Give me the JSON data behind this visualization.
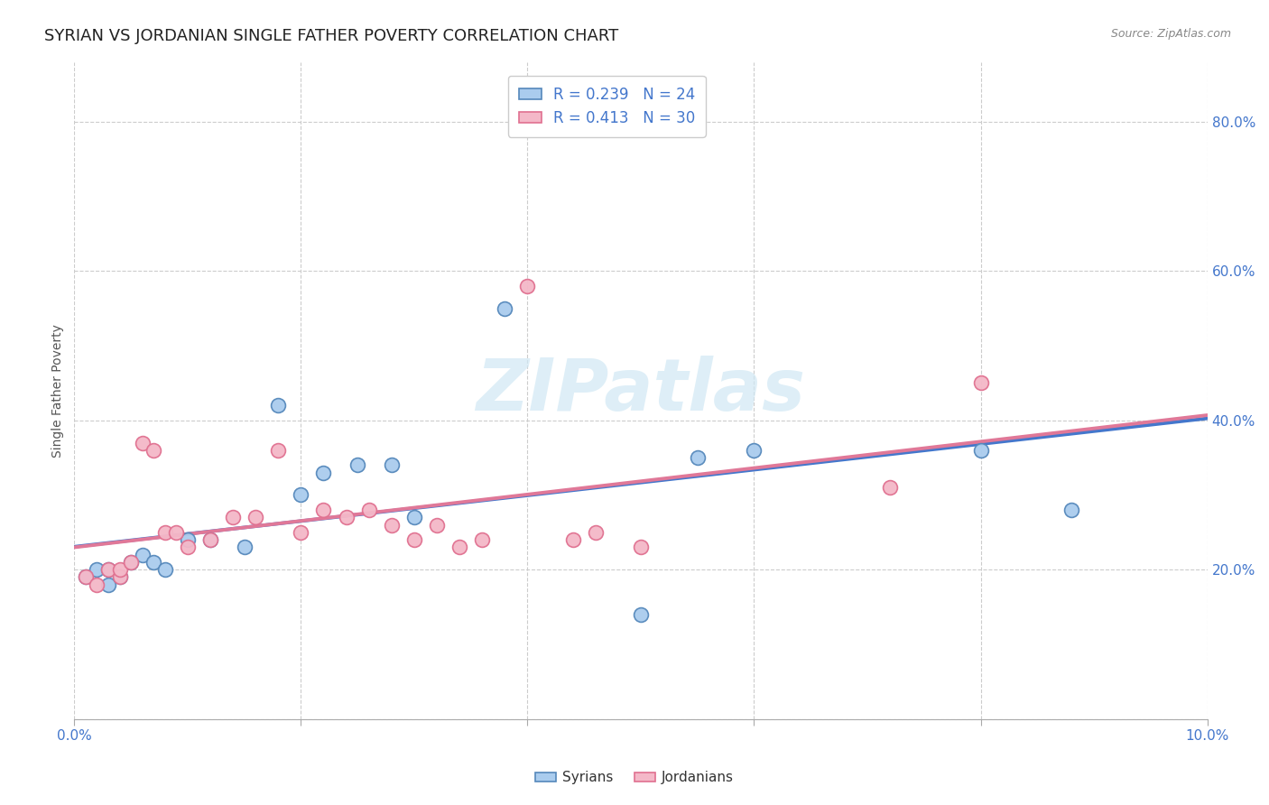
{
  "title": "SYRIAN VS JORDANIAN SINGLE FATHER POVERTY CORRELATION CHART",
  "source": "Source: ZipAtlas.com",
  "ylabel": "Single Father Poverty",
  "xlim": [
    0.0,
    0.1
  ],
  "ylim": [
    0.0,
    0.88
  ],
  "xtick_positions": [
    0.0,
    0.02,
    0.04,
    0.06,
    0.08,
    0.1
  ],
  "xticklabels": [
    "0.0%",
    "",
    "",
    "",
    "",
    "10.0%"
  ],
  "ytick_positions": [
    0.0,
    0.2,
    0.4,
    0.6,
    0.8
  ],
  "yticklabels": [
    "",
    "20.0%",
    "40.0%",
    "60.0%",
    "80.0%"
  ],
  "syrian_color": "#aaccee",
  "syrian_edge": "#5588bb",
  "jordanian_color": "#f4b8c8",
  "jordanian_edge": "#e07090",
  "trend_syrian_color": "#4477cc",
  "trend_jordanian_color": "#e07898",
  "R_syrian": 0.239,
  "N_syrian": 24,
  "R_jordanian": 0.413,
  "N_jordanian": 30,
  "syrian_x": [
    0.001,
    0.002,
    0.003,
    0.003,
    0.004,
    0.005,
    0.006,
    0.007,
    0.008,
    0.01,
    0.012,
    0.015,
    0.018,
    0.02,
    0.022,
    0.025,
    0.028,
    0.03,
    0.038,
    0.05,
    0.055,
    0.06,
    0.08,
    0.088
  ],
  "syrian_y": [
    0.19,
    0.2,
    0.18,
    0.2,
    0.19,
    0.21,
    0.22,
    0.21,
    0.2,
    0.24,
    0.24,
    0.23,
    0.42,
    0.3,
    0.33,
    0.34,
    0.34,
    0.27,
    0.55,
    0.14,
    0.35,
    0.36,
    0.36,
    0.28
  ],
  "jordanian_x": [
    0.001,
    0.002,
    0.003,
    0.004,
    0.004,
    0.005,
    0.006,
    0.007,
    0.008,
    0.009,
    0.01,
    0.012,
    0.014,
    0.016,
    0.018,
    0.02,
    0.022,
    0.024,
    0.026,
    0.028,
    0.03,
    0.032,
    0.034,
    0.036,
    0.04,
    0.044,
    0.046,
    0.05,
    0.072,
    0.08
  ],
  "jordanian_y": [
    0.19,
    0.18,
    0.2,
    0.19,
    0.2,
    0.21,
    0.37,
    0.36,
    0.25,
    0.25,
    0.23,
    0.24,
    0.27,
    0.27,
    0.36,
    0.25,
    0.28,
    0.27,
    0.28,
    0.26,
    0.24,
    0.26,
    0.23,
    0.24,
    0.58,
    0.24,
    0.25,
    0.23,
    0.31,
    0.45
  ],
  "background_color": "#ffffff",
  "watermark": "ZIPatlas",
  "watermark_color": "#d0e8f4",
  "grid_color": "#cccccc",
  "title_fontsize": 13,
  "label_fontsize": 10,
  "tick_fontsize": 11,
  "legend_fontsize": 12,
  "tick_color": "#4477cc",
  "title_color": "#222222"
}
